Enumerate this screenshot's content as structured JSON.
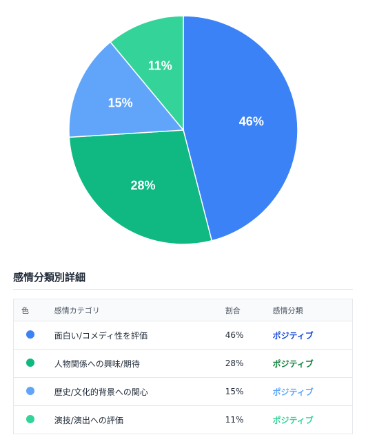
{
  "chart_data": {
    "type": "pie",
    "slices": [
      {
        "label": "面白い/コメディ性を評価",
        "value": 46,
        "color": "#3b82f6"
      },
      {
        "label": "人物関係への興味/期待",
        "value": 28,
        "color": "#10b981"
      },
      {
        "label": "歴史/文化的背景への関心",
        "value": 15,
        "color": "#60a5fa"
      },
      {
        "label": "演技/演出への評価",
        "value": 11,
        "color": "#34d399"
      }
    ],
    "unit": "%"
  },
  "section": {
    "title": "感情分類別詳細"
  },
  "table": {
    "headers": {
      "color": "色",
      "category": "感情カテゴリ",
      "ratio": "割合",
      "sentiment": "感情分類"
    },
    "rows": [
      {
        "color": "#3b82f6",
        "category": "面白い/コメディ性を評価",
        "ratio": "46%",
        "sentiment": "ポジティブ",
        "sentiment_color": "#1d4ed8"
      },
      {
        "color": "#10b981",
        "category": "人物関係への興味/期待",
        "ratio": "28%",
        "sentiment": "ポジティブ",
        "sentiment_color": "#15803d"
      },
      {
        "color": "#60a5fa",
        "category": "歴史/文化的背景への関心",
        "ratio": "15%",
        "sentiment": "ポジティブ",
        "sentiment_color": "#60a5fa"
      },
      {
        "color": "#34d399",
        "category": "演技/演出への評価",
        "ratio": "11%",
        "sentiment": "ポジティブ",
        "sentiment_color": "#34d399"
      }
    ]
  }
}
